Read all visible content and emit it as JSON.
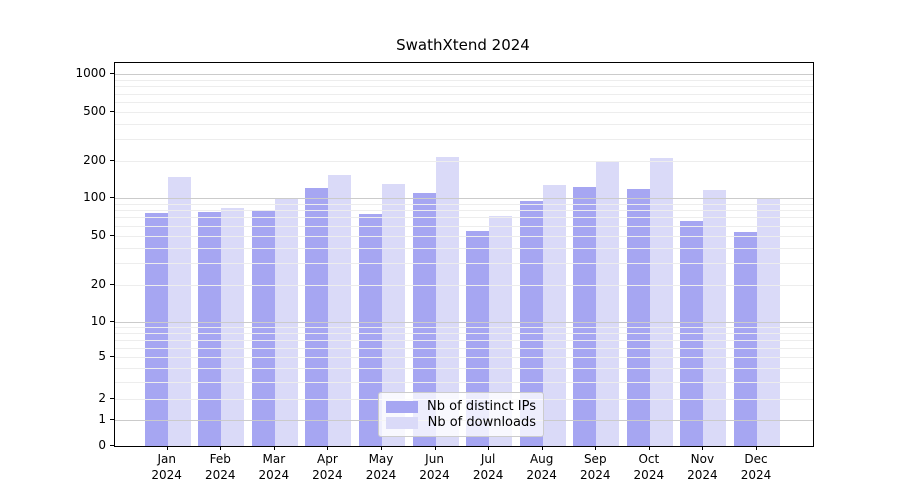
{
  "title": "SwathXtend 2024",
  "chart_data": {
    "type": "bar",
    "title": "SwathXtend 2024",
    "categories": [
      "Jan",
      "Feb",
      "Mar",
      "Apr",
      "May",
      "Jun",
      "Jul",
      "Aug",
      "Sep",
      "Oct",
      "Nov",
      "Dec"
    ],
    "year_label": "2024",
    "series": [
      {
        "name": "Nb of distinct IPs",
        "color": "#a6a6f2",
        "values": [
          76,
          77,
          81,
          121,
          75,
          111,
          54,
          95,
          124,
          119,
          65,
          53
        ]
      },
      {
        "name": "Nb of downloads",
        "color": "#dadaf8",
        "values": [
          148,
          83,
          100,
          155,
          131,
          215,
          72,
          129,
          197,
          212,
          116,
          100
        ]
      }
    ],
    "xlabel": "",
    "ylabel": "",
    "y_scale": "symlog",
    "y_ticks": [
      0,
      1,
      2,
      5,
      10,
      20,
      50,
      100,
      200,
      500,
      1000
    ],
    "ylim": [
      0,
      1200
    ],
    "grid": true,
    "legend_position": "lower center",
    "colors": {
      "grid_major": "#cbcbcb",
      "grid_minor": "#ededed",
      "axis": "#000000",
      "background": "#ffffff"
    }
  }
}
